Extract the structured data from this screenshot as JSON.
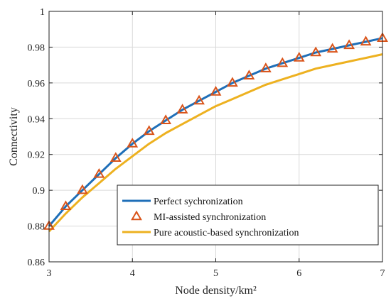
{
  "chart_data": {
    "type": "line",
    "title": "",
    "xlabel": "Node density/km²",
    "ylabel": "Connectivity",
    "xlim": [
      3,
      7
    ],
    "ylim": [
      0.86,
      1.0
    ],
    "x_ticks": [
      3,
      4,
      5,
      6,
      7
    ],
    "y_ticks": [
      0.86,
      0.88,
      0.9,
      0.92,
      0.94,
      0.96,
      0.98,
      1.0
    ],
    "x_tick_labels": [
      "3",
      "4",
      "5",
      "6",
      "7"
    ],
    "y_tick_labels": [
      "0.86",
      "0.88",
      "0.9",
      "0.92",
      "0.94",
      "0.96",
      "0.98",
      "1"
    ],
    "grid": true,
    "legend_position": "bottom-right",
    "series": [
      {
        "name": "Perfect sychronization",
        "color": "#1f6fb8",
        "marker": "none",
        "x": [
          3.0,
          3.2,
          3.4,
          3.6,
          3.8,
          4.0,
          4.2,
          4.4,
          4.6,
          4.8,
          5.0,
          5.2,
          5.4,
          5.6,
          5.8,
          6.0,
          6.2,
          6.4,
          6.6,
          6.8,
          7.0
        ],
        "y": [
          0.88,
          0.891,
          0.9,
          0.909,
          0.918,
          0.926,
          0.933,
          0.939,
          0.945,
          0.95,
          0.955,
          0.96,
          0.964,
          0.968,
          0.971,
          0.974,
          0.977,
          0.979,
          0.981,
          0.983,
          0.985
        ]
      },
      {
        "name": "MI-assisted synchronization",
        "color": "#d95319",
        "marker": "triangle",
        "x": [
          3.0,
          3.2,
          3.4,
          3.6,
          3.8,
          4.0,
          4.2,
          4.4,
          4.6,
          4.8,
          5.0,
          5.2,
          5.4,
          5.6,
          5.8,
          6.0,
          6.2,
          6.4,
          6.6,
          6.8,
          7.0
        ],
        "y": [
          0.88,
          0.891,
          0.9,
          0.909,
          0.918,
          0.926,
          0.933,
          0.939,
          0.945,
          0.95,
          0.955,
          0.96,
          0.964,
          0.968,
          0.971,
          0.974,
          0.977,
          0.979,
          0.981,
          0.983,
          0.985
        ]
      },
      {
        "name": "Pure acoustic-based synchronization",
        "color": "#edb120",
        "marker": "none",
        "x": [
          3.0,
          3.2,
          3.4,
          3.6,
          3.8,
          4.0,
          4.2,
          4.4,
          4.6,
          4.8,
          5.0,
          5.2,
          5.4,
          5.6,
          5.8,
          6.0,
          6.2,
          6.4,
          6.6,
          6.8,
          7.0
        ],
        "y": [
          0.877,
          0.887,
          0.896,
          0.904,
          0.912,
          0.919,
          0.926,
          0.932,
          0.937,
          0.942,
          0.947,
          0.951,
          0.955,
          0.959,
          0.962,
          0.965,
          0.968,
          0.97,
          0.972,
          0.974,
          0.976
        ]
      }
    ]
  }
}
